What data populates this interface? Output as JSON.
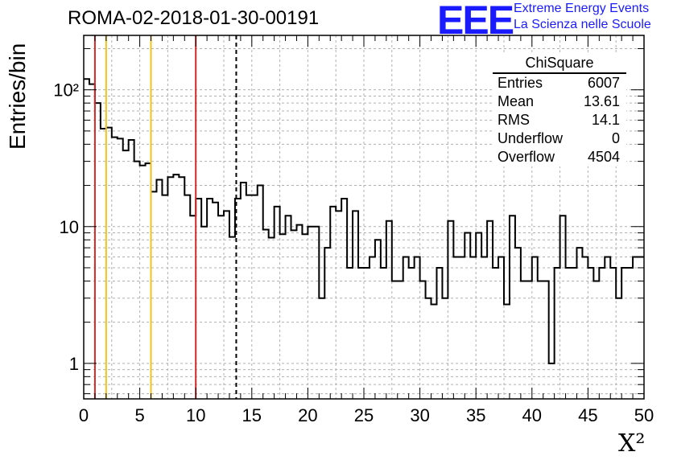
{
  "header": {
    "title": "ROMA-02-2018-01-30-00191",
    "logo_mark": "EEE",
    "logo_line1": "Extreme Energy Events",
    "logo_line2": "La Scienza nelle Scuole"
  },
  "stats": {
    "title": "ChiSquare",
    "rows": [
      {
        "label": "Entries",
        "value": "6007"
      },
      {
        "label": "Mean",
        "value": "13.61"
      },
      {
        "label": "RMS",
        "value": "14.1"
      },
      {
        "label": "Underflow",
        "value": "0"
      },
      {
        "label": "Overflow",
        "value": "4504"
      }
    ]
  },
  "chart_data": {
    "type": "bar",
    "histogram": true,
    "title": "ROMA-02-2018-01-30-00191",
    "xlabel": "X²",
    "ylabel": "Entries/bin",
    "yscale": "log",
    "xlim": [
      0,
      50
    ],
    "ylim": [
      0.55,
      250
    ],
    "grid": true,
    "bin_width": 0.5,
    "x_ticks": [
      0,
      5,
      10,
      15,
      20,
      25,
      30,
      35,
      40,
      45,
      50
    ],
    "y_tick_labels": [
      "1",
      "10",
      "10²"
    ],
    "bin_edges_start": 0,
    "values": [
      120,
      110,
      80,
      52,
      53,
      45,
      44,
      36,
      43,
      30,
      28,
      29,
      18,
      22,
      17,
      23,
      24,
      23,
      17,
      12,
      16,
      10,
      16,
      15,
      12,
      13,
      8.4,
      16,
      21,
      17,
      17,
      20,
      9.5,
      8.3,
      14,
      8.8,
      12,
      9.4,
      10.3,
      8.8,
      10,
      10,
      3,
      7,
      14,
      13,
      16,
      5,
      13,
      5,
      5,
      6,
      8,
      5,
      11,
      4,
      4,
      6,
      5,
      6,
      4,
      3,
      2.7,
      5,
      3,
      11,
      6,
      6,
      9,
      6,
      9,
      6,
      11,
      5,
      6,
      2.7,
      12,
      7,
      4,
      4,
      6,
      4,
      4,
      1,
      5,
      12,
      5,
      5,
      7,
      6,
      5,
      4,
      5,
      6,
      5,
      3,
      5,
      5,
      6,
      6
    ],
    "reference_lines": [
      {
        "x": 1,
        "color": "#d62728",
        "style": "solid"
      },
      {
        "x": 2,
        "color": "#f0c419",
        "style": "solid"
      },
      {
        "x": 6,
        "color": "#f0c419",
        "style": "solid"
      },
      {
        "x": 10,
        "color": "#d62728",
        "style": "solid"
      },
      {
        "x": 13.61,
        "color": "#000000",
        "style": "dashed"
      }
    ]
  }
}
